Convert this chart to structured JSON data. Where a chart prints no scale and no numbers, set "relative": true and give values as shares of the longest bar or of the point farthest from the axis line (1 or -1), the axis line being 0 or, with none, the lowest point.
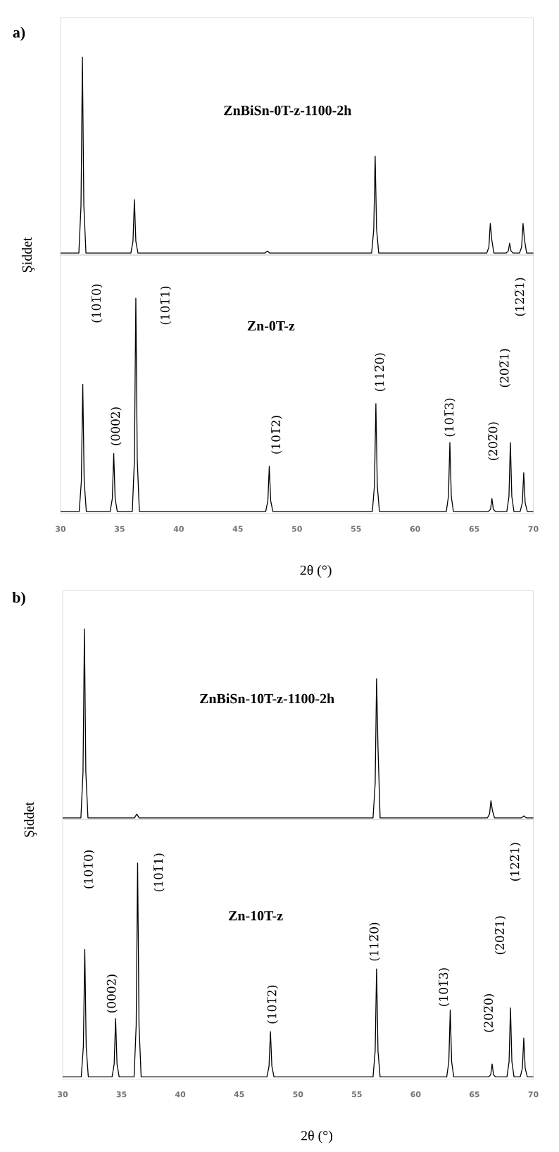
{
  "chart_data": [
    {
      "type": "line",
      "relative": true,
      "title": "a)",
      "ylabel": "Şiddet",
      "xlim": [
        30,
        70
      ],
      "xticks": [
        30,
        35,
        40,
        45,
        50,
        55,
        60,
        65,
        70
      ],
      "tick_labels": false,
      "series": [
        {
          "name": "ZnBiSn-0T-z-1100-2h",
          "color": "#000000",
          "x": [
            30,
            31.55,
            31.73,
            31.85,
            31.97,
            32.15,
            35.95,
            36.13,
            36.25,
            36.37,
            36.55,
            47.3,
            47.5,
            47.7,
            56.32,
            56.5,
            56.62,
            56.74,
            56.92,
            66.06,
            66.24,
            66.36,
            66.48,
            66.66,
            67.7,
            67.88,
            68.0,
            68.12,
            68.3,
            68.83,
            69.01,
            69.13,
            69.25,
            69.43,
            70
          ],
          "values": [
            0.01,
            0.01,
            0.25,
            1,
            0.25,
            0.01,
            0.01,
            0.07,
            0.28,
            0.07,
            0.01,
            0.01,
            0.02,
            0.01,
            0.01,
            0.13,
            0.5,
            0.13,
            0.01,
            0.01,
            0.04,
            0.16,
            0.08,
            0.01,
            0.01,
            0.02,
            0.06,
            0.02,
            0.01,
            0.01,
            0.04,
            0.16,
            0.08,
            0.01,
            0.01
          ]
        }
      ]
    },
    {
      "type": "line",
      "relative": true,
      "xlabel": "2θ (°)",
      "xlim": [
        30,
        70
      ],
      "xticks": [
        30,
        35,
        40,
        45,
        50,
        55,
        60,
        65,
        70
      ],
      "series": [
        {
          "name": "Zn-0T-z",
          "color": "#000000",
          "x": [
            30,
            31.58,
            31.76,
            31.88,
            32.0,
            32.18,
            34.2,
            34.38,
            34.5,
            34.62,
            34.8,
            36.07,
            36.25,
            36.37,
            36.49,
            36.67,
            47.36,
            47.54,
            47.66,
            47.78,
            47.96,
            56.38,
            56.56,
            56.68,
            56.8,
            56.98,
            62.64,
            62.82,
            62.94,
            63.06,
            63.24,
            66.2,
            66.38,
            66.5,
            66.62,
            66.8,
            67.76,
            67.94,
            68.06,
            68.18,
            68.36,
            68.89,
            69.07,
            69.19,
            69.31,
            69.49,
            70
          ],
          "values": [
            0.01,
            0.01,
            0.15,
            0.6,
            0.15,
            0.01,
            0.01,
            0.07,
            0.28,
            0.07,
            0.01,
            0.01,
            0.25,
            1,
            0.25,
            0.01,
            0.01,
            0.06,
            0.22,
            0.06,
            0.01,
            0.01,
            0.13,
            0.51,
            0.13,
            0.01,
            0.01,
            0.08,
            0.33,
            0.08,
            0.01,
            0.01,
            0.02,
            0.07,
            0.02,
            0.01,
            0.01,
            0.08,
            0.33,
            0.08,
            0.01,
            0.01,
            0.05,
            0.19,
            0.05,
            0.01,
            0.01
          ]
        }
      ],
      "annotations": [
        "(101̅0)",
        "(0002)",
        "(101̅1)",
        "(101̅2)",
        "(112̅0)",
        "(101̅3)",
        "(202̅0)",
        "(202̅1)",
        "(122̅1)"
      ]
    },
    {
      "type": "line",
      "relative": true,
      "title": "b)",
      "ylabel": "Şiddet",
      "xlim": [
        30,
        70
      ],
      "xticks": [
        30,
        35,
        40,
        45,
        50,
        55,
        60,
        65,
        70
      ],
      "tick_labels": false,
      "series": [
        {
          "name": "ZnBiSn-10T-z-1100-2h",
          "color": "#000000",
          "x": [
            30,
            31.55,
            31.73,
            31.85,
            31.97,
            32.15,
            36.1,
            36.3,
            36.5,
            56.38,
            56.56,
            56.68,
            56.8,
            56.98,
            66.1,
            66.28,
            66.4,
            66.52,
            66.7,
            69.0,
            69.2,
            69.4,
            70
          ],
          "values": [
            0.01,
            0.01,
            0.25,
            1,
            0.25,
            0.01,
            0.01,
            0.03,
            0.01,
            0.01,
            0.19,
            0.74,
            0.38,
            0.01,
            0.01,
            0.03,
            0.1,
            0.05,
            0.01,
            0.01,
            0.02,
            0.01,
            0.01
          ]
        }
      ]
    },
    {
      "type": "line",
      "relative": true,
      "xlabel": "2θ (°)",
      "xlim": [
        30,
        70
      ],
      "xticks": [
        30,
        35,
        40,
        45,
        50,
        55,
        60,
        65,
        70
      ],
      "series": [
        {
          "name": "Zn-10T-z",
          "color": "#000000",
          "x": [
            30,
            31.58,
            31.76,
            31.88,
            32.0,
            32.18,
            34.2,
            34.38,
            34.5,
            34.62,
            34.8,
            36.07,
            36.25,
            36.37,
            36.49,
            36.67,
            47.36,
            47.54,
            47.66,
            47.78,
            47.96,
            56.38,
            56.56,
            56.68,
            56.8,
            56.98,
            62.64,
            62.82,
            62.94,
            63.06,
            63.24,
            66.2,
            66.38,
            66.5,
            66.62,
            66.8,
            67.76,
            67.94,
            68.06,
            68.18,
            68.36,
            68.89,
            69.07,
            69.19,
            69.31,
            69.49,
            70
          ],
          "values": [
            0.01,
            0.01,
            0.15,
            0.6,
            0.15,
            0.01,
            0.01,
            0.07,
            0.28,
            0.07,
            0.01,
            0.01,
            0.25,
            1,
            0.25,
            0.01,
            0.01,
            0.06,
            0.22,
            0.06,
            0.01,
            0.01,
            0.13,
            0.51,
            0.13,
            0.01,
            0.01,
            0.08,
            0.32,
            0.08,
            0.01,
            0.01,
            0.02,
            0.07,
            0.02,
            0.01,
            0.01,
            0.08,
            0.33,
            0.08,
            0.01,
            0.01,
            0.05,
            0.19,
            0.05,
            0.01,
            0.01
          ]
        }
      ],
      "annotations": [
        "(101̅0)",
        "(0002)",
        "(101̅1)",
        "(101̅2)",
        "(112̅0)",
        "(101̅3)",
        "(202̅0)",
        "(202̅1)",
        "(122̅1)"
      ]
    }
  ]
}
